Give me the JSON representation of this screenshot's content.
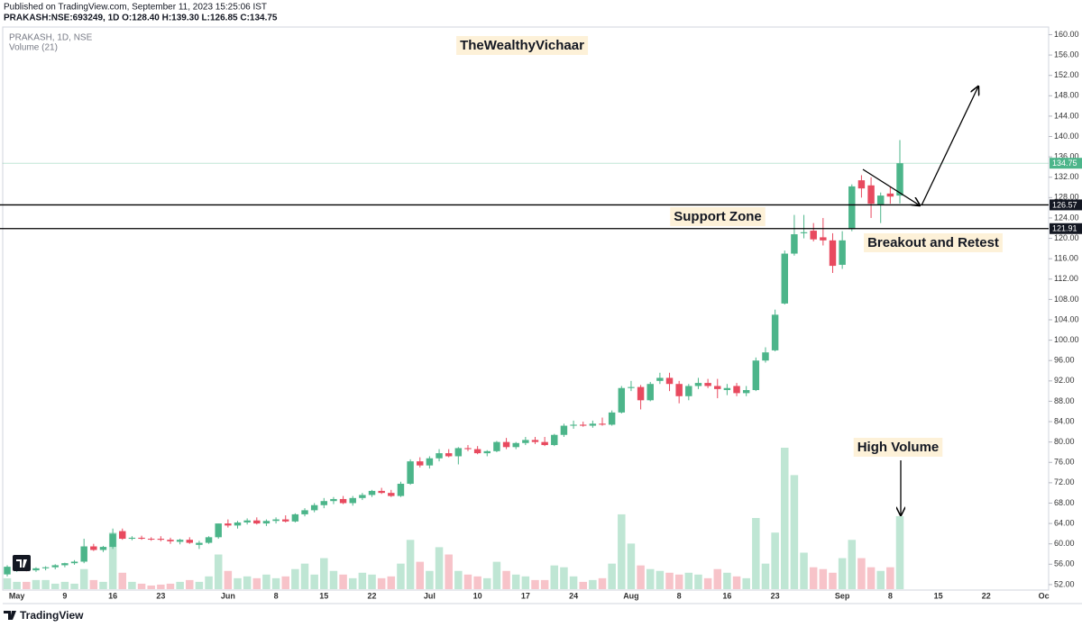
{
  "header": {
    "published": "Published on TradingView.com, September 11, 2023 15:25:06 IST",
    "symbol_line": "PRAKASH:NSE:693249, 1D  O:128.40 H:139.30 L:126.85 C:134.75"
  },
  "footer": {
    "brand": "TradingView"
  },
  "chart_data": {
    "type": "candlestick",
    "legend": {
      "symbol": "PRAKASH, 1D, NSE",
      "volume": "Volume (21)"
    },
    "annotations": {
      "watermark": "TheWealthyVichaar",
      "support": "Support Zone",
      "breakout": "Breakout and Retest",
      "volume": "High Volume"
    },
    "categories": [
      null,
      "May",
      null,
      null,
      null,
      null,
      "9",
      null,
      null,
      null,
      null,
      "16",
      null,
      null,
      null,
      null,
      "23",
      null,
      null,
      null,
      null,
      null,
      null,
      "Jun",
      null,
      null,
      null,
      null,
      "8",
      null,
      null,
      null,
      null,
      "15",
      null,
      null,
      null,
      null,
      "22",
      null,
      null,
      null,
      null,
      null,
      "Jul",
      null,
      null,
      null,
      null,
      "10",
      null,
      null,
      null,
      null,
      "17",
      null,
      null,
      null,
      null,
      "24",
      null,
      null,
      null,
      null,
      null,
      "Aug",
      null,
      null,
      null,
      null,
      "8",
      null,
      null,
      null,
      null,
      "16",
      null,
      null,
      null,
      null,
      "23",
      null,
      null,
      null,
      null,
      null,
      null,
      "Sep",
      null,
      null,
      null,
      null,
      "8",
      null,
      null,
      null,
      null,
      "15",
      null,
      null,
      null,
      null,
      "22",
      null,
      null,
      null,
      null,
      null,
      "Oc"
    ],
    "open": [
      54,
      55,
      55.2,
      54.8,
      55.2,
      55.4,
      55.8,
      56.2,
      56.5,
      59.5,
      58.8,
      59.4,
      62.5,
      61,
      61.2,
      61,
      61,
      60.8,
      60.4,
      60.8,
      59.8,
      60.2,
      61.3,
      64,
      63.6,
      64.2,
      64.6,
      64,
      64.5,
      64.8,
      64.4,
      65.8,
      66.6,
      67.6,
      68.4,
      68.8,
      68,
      69,
      69.6,
      70.4,
      70,
      69.4,
      71.8,
      76.2,
      75.4,
      76.8,
      77.8,
      77.2,
      78.8,
      78.6,
      77.8,
      78.2,
      80,
      79,
      79.8,
      80.4,
      80,
      79.4,
      81.4,
      83.2,
      83.4,
      83.2,
      83.6,
      83.4,
      85.8,
      90.6,
      90.8,
      88.2,
      92,
      92.6,
      91.4,
      89,
      91,
      91.6,
      91,
      90.2,
      91,
      89.6,
      90.2,
      96,
      98,
      107.2,
      117,
      121,
      121.5,
      120.2,
      119.6,
      114.8,
      121.8,
      131.4,
      130.4,
      126.6,
      128.8,
      128.4,
      null,
      null,
      null,
      null,
      null,
      null,
      null,
      null,
      null,
      null,
      null,
      null,
      null,
      null,
      null
    ],
    "high": [
      55.8,
      55.5,
      55.8,
      55.4,
      55.6,
      56,
      56.3,
      56.8,
      61,
      60,
      59.6,
      63,
      63,
      61.5,
      61.6,
      61.3,
      61.5,
      61.2,
      61,
      61.3,
      60.6,
      61.5,
      64,
      64.8,
      64.5,
      65,
      65.2,
      64.8,
      65.2,
      65.6,
      66,
      67,
      68,
      69,
      69.2,
      69.4,
      69.4,
      70,
      70.6,
      71,
      70.6,
      72.2,
      76.6,
      77,
      77.2,
      78.6,
      78.6,
      79,
      79.4,
      79.2,
      78.4,
      80.2,
      80.8,
      80,
      81,
      81,
      81,
      81.6,
      83.6,
      84.2,
      84,
      84.2,
      84.8,
      86.2,
      91,
      92,
      91.2,
      91.8,
      93.6,
      93.6,
      92,
      91.4,
      92.6,
      92.4,
      92.4,
      91.4,
      91.6,
      91,
      96.6,
      98.6,
      106,
      117.6,
      124.6,
      124.6,
      123,
      124,
      121,
      121.4,
      130.6,
      132.4,
      132,
      129,
      130.2,
      139.3,
      null,
      null,
      null,
      null,
      null,
      null,
      null,
      null,
      null,
      null,
      null,
      null,
      null,
      null,
      null
    ],
    "low": [
      53.6,
      54.5,
      54.6,
      54.5,
      54.8,
      55,
      55.4,
      55.9,
      56.2,
      58.6,
      58.4,
      59,
      60.8,
      60.7,
      60.8,
      60.6,
      60.5,
      60,
      59.9,
      60,
      59,
      60,
      61,
      63.2,
      63,
      63.8,
      63.8,
      63.5,
      64,
      64.2,
      64.2,
      65.4,
      66.2,
      67,
      67.8,
      67.8,
      67.5,
      68.6,
      69.2,
      69.8,
      69.2,
      69.2,
      71.6,
      75,
      74.8,
      76.2,
      77,
      75.6,
      78.2,
      77.6,
      77.2,
      78,
      78.6,
      78.6,
      79.4,
      79.6,
      79.2,
      79.2,
      81,
      82.6,
      83,
      82.8,
      83.2,
      83.2,
      85.6,
      90,
      86.4,
      88,
      91.4,
      90,
      87.6,
      88.2,
      90.4,
      90.6,
      88.6,
      89.2,
      89,
      89,
      90,
      95.6,
      97.8,
      107,
      116.6,
      120,
      119.4,
      118.6,
      113.2,
      114,
      121.4,
      128,
      124,
      123,
      126.8,
      126.85,
      null,
      null,
      null,
      null,
      null,
      null,
      null,
      null,
      null,
      null,
      null,
      null,
      null,
      null,
      null
    ],
    "close": [
      55.5,
      55.2,
      54.8,
      55.2,
      55.4,
      55.8,
      56.2,
      56.5,
      59.5,
      58.8,
      59.4,
      62,
      61,
      61.2,
      61,
      60.9,
      60.8,
      60.5,
      60.8,
      60.2,
      60.2,
      61.3,
      64,
      63.6,
      64.2,
      64.6,
      64,
      64.5,
      64.8,
      64.4,
      65.8,
      66.6,
      67.6,
      68.4,
      68.8,
      68,
      69,
      69.6,
      70.4,
      70,
      69.4,
      71.8,
      76.2,
      75.4,
      76.8,
      77.8,
      77.2,
      78.8,
      78.6,
      77.8,
      78.2,
      80,
      79,
      79.8,
      80.4,
      80,
      79.4,
      81.4,
      83.2,
      83.4,
      83.2,
      83.6,
      83.4,
      85.8,
      90.6,
      90.8,
      88.2,
      91.4,
      92.6,
      91.4,
      89,
      91,
      91.6,
      91,
      90.4,
      90.6,
      89.6,
      90.2,
      96,
      97.6,
      105,
      117,
      120.8,
      121.2,
      119.8,
      119.6,
      114.6,
      119.6,
      130.2,
      129.8,
      126.8,
      128.4,
      128.2,
      134.75,
      null,
      null,
      null,
      null,
      null,
      null,
      null,
      null,
      null,
      null,
      null,
      null,
      null,
      null,
      null
    ],
    "volume": [
      12,
      8,
      8,
      10,
      10,
      6,
      8,
      6,
      22,
      10,
      8,
      62,
      18,
      8,
      6,
      4,
      5,
      6,
      8,
      10,
      8,
      14,
      38,
      20,
      12,
      14,
      12,
      16,
      12,
      14,
      22,
      28,
      16,
      34,
      20,
      16,
      12,
      18,
      16,
      12,
      14,
      28,
      54,
      30,
      20,
      46,
      38,
      20,
      16,
      14,
      12,
      30,
      20,
      16,
      14,
      10,
      10,
      26,
      24,
      14,
      8,
      10,
      12,
      28,
      82,
      50,
      26,
      22,
      20,
      18,
      16,
      18,
      16,
      12,
      22,
      18,
      14,
      12,
      78,
      28,
      62,
      155,
      125,
      40,
      24,
      22,
      18,
      34,
      54,
      34,
      24,
      20,
      24,
      80,
      null,
      null,
      null,
      null,
      null,
      null,
      null,
      null,
      null,
      null,
      null,
      null,
      null,
      null,
      null
    ],
    "up_color": "#4cb58a",
    "down_color": "#e84a5f",
    "volume_up_color": "#bfe6d4",
    "volume_down_color": "#f7c3c9",
    "price_lines": [
      126.57,
      121.91
    ],
    "ylim": [
      51.1,
      161.5
    ],
    "yticks": [
      {
        "value": 52,
        "label": "52.00"
      },
      {
        "value": 56,
        "label": "56.00"
      },
      {
        "value": 60,
        "label": "60.00"
      },
      {
        "value": 64,
        "label": "64.00"
      },
      {
        "value": 68,
        "label": "68.00"
      },
      {
        "value": 72,
        "label": "72.00"
      },
      {
        "value": 76,
        "label": "76.00"
      },
      {
        "value": 80,
        "label": "80.00"
      },
      {
        "value": 84,
        "label": "84.00"
      },
      {
        "value": 88,
        "label": "88.00"
      },
      {
        "value": 92,
        "label": "92.00"
      },
      {
        "value": 96,
        "label": "96.00"
      },
      {
        "value": 100,
        "label": "100.00"
      },
      {
        "value": 104,
        "label": "104.00"
      },
      {
        "value": 108,
        "label": "108.00"
      },
      {
        "value": 112,
        "label": "112.00"
      },
      {
        "value": 116,
        "label": "116.00"
      },
      {
        "value": 120,
        "label": "120.00"
      },
      {
        "value": 124,
        "label": "124.00"
      },
      {
        "value": 128,
        "label": "128.00"
      },
      {
        "value": 132,
        "label": "132.00"
      },
      {
        "value": 136,
        "label": "136.00"
      },
      {
        "value": 140,
        "label": "140.00"
      },
      {
        "value": 144,
        "label": "144.00"
      },
      {
        "value": 148,
        "label": "148.00"
      },
      {
        "value": 152,
        "label": "152.00"
      },
      {
        "value": 156,
        "label": "156.00"
      },
      {
        "value": 160,
        "label": "160.00"
      }
    ]
  }
}
